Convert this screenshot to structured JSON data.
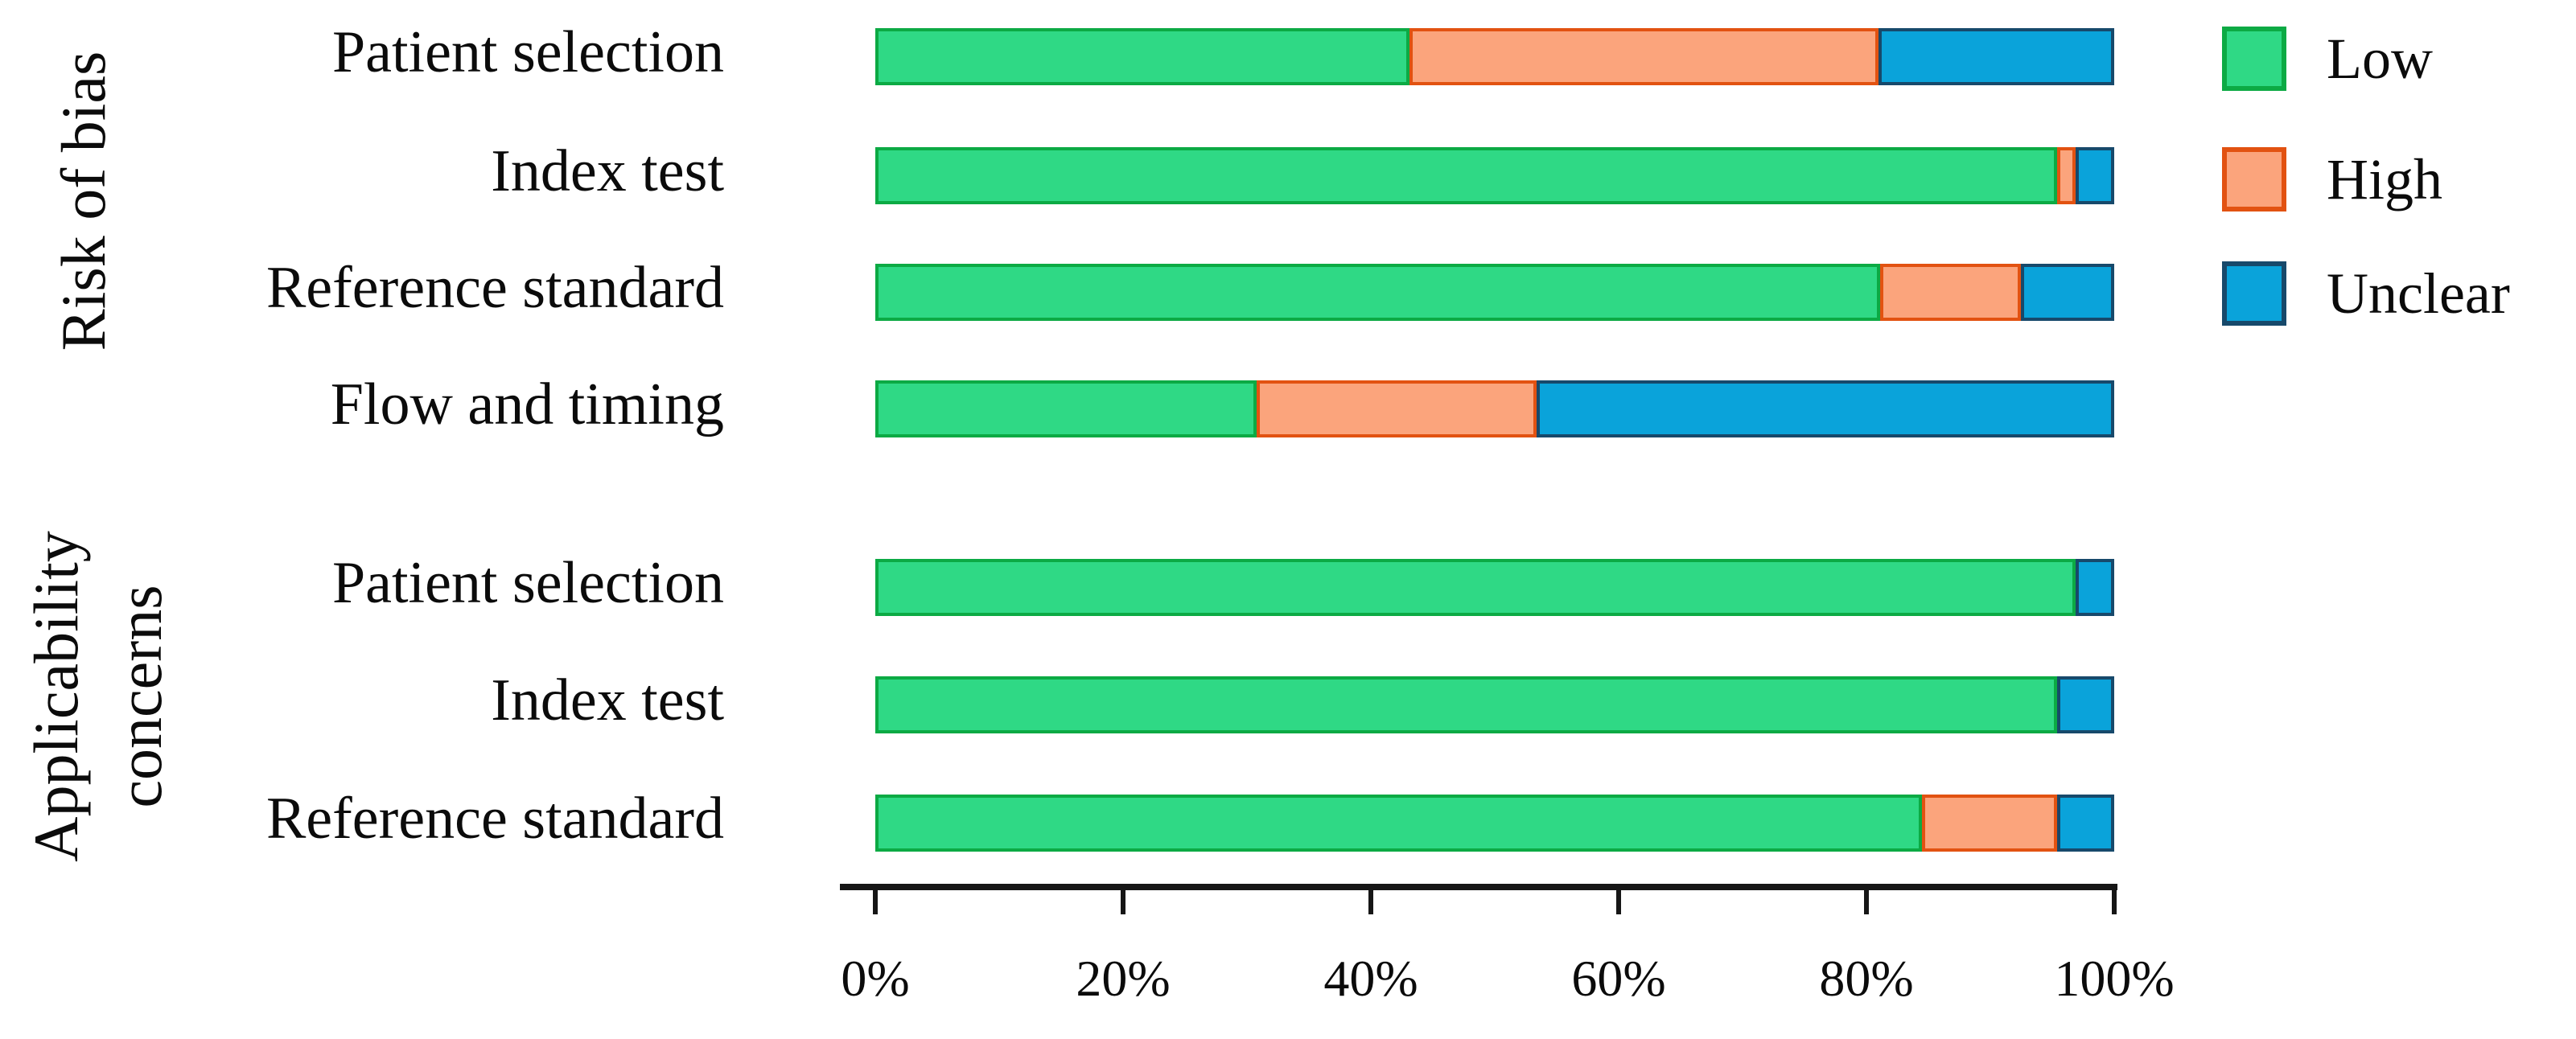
{
  "colors": {
    "low": {
      "fill": "#2fd985",
      "border": "#0caa44"
    },
    "high": {
      "fill": "#fba47c",
      "border": "#e25211"
    },
    "unclear": {
      "fill": "#0aa3da",
      "border": "#17496b"
    },
    "axis": "#161616",
    "text": "#0b0b0b"
  },
  "legend": {
    "items": [
      {
        "key": "low",
        "label": "Low"
      },
      {
        "key": "high",
        "label": "High"
      },
      {
        "key": "unclear",
        "label": "Unclear"
      }
    ]
  },
  "chart_data": {
    "type": "bar",
    "orientation": "horizontal",
    "stacked": true,
    "units": "percent",
    "xlim": [
      0,
      100
    ],
    "x_ticks": [
      "0%",
      "20%",
      "40%",
      "60%",
      "80%",
      "100%"
    ],
    "legend_position": "right",
    "groups": [
      {
        "title": "Risk of bias",
        "categories": [
          "Patient selection",
          "Index test",
          "Reference standard",
          "Flow and timing"
        ],
        "series": [
          {
            "key": "low",
            "name": "Low",
            "values": [
              43.1,
              95.4,
              81.1,
              30.8
            ]
          },
          {
            "key": "high",
            "name": "High",
            "values": [
              37.9,
              1.5,
              11.4,
              22.6
            ]
          },
          {
            "key": "unclear",
            "name": "Unclear",
            "values": [
              19.0,
              3.1,
              7.5,
              46.6
            ]
          }
        ]
      },
      {
        "title": "Applicability concerns",
        "categories": [
          "Patient selection",
          "Index test",
          "Reference standard"
        ],
        "series": [
          {
            "key": "low",
            "name": "Low",
            "values": [
              96.9,
              95.4,
              84.5
            ]
          },
          {
            "key": "high",
            "name": "High",
            "values": [
              0,
              0,
              10.9
            ]
          },
          {
            "key": "unclear",
            "name": "Unclear",
            "values": [
              3.1,
              4.6,
              4.6
            ]
          }
        ]
      }
    ]
  }
}
